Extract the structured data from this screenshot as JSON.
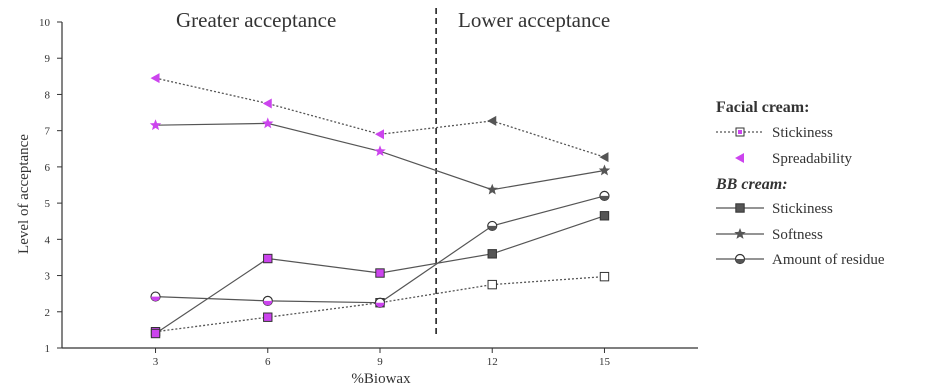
{
  "chart_data": {
    "type": "line",
    "xlabel": "%Biowax",
    "ylabel": "Level of acceptance",
    "xlim": [
      0.5,
      17.5
    ],
    "ylim": [
      1,
      10
    ],
    "x_ticks": [
      3,
      6,
      9,
      12,
      15
    ],
    "y_ticks": [
      1,
      2,
      3,
      4,
      5,
      6,
      7,
      8,
      9,
      10
    ],
    "divider_x": 10.5,
    "region_labels": {
      "left": "Greater acceptance",
      "right": "Lower acceptance"
    },
    "legend": {
      "placement": "right",
      "group_facial": "Facial cream:",
      "group_bb": "BB cream:"
    },
    "series": [
      {
        "name": "Stickiness",
        "group": "Facial cream",
        "marker": "square-open",
        "line": "dotted",
        "x": [
          3,
          6,
          9,
          12,
          15
        ],
        "y": [
          1.45,
          1.85,
          2.25,
          2.75,
          2.97
        ]
      },
      {
        "name": "Spreadability",
        "group": "Facial cream",
        "marker": "triangle-left",
        "line": "dotted",
        "x": [
          3,
          6,
          9,
          12,
          15
        ],
        "y": [
          8.45,
          7.75,
          6.9,
          7.27,
          6.27
        ]
      },
      {
        "name": "Stickiness",
        "group": "BB cream",
        "marker": "square",
        "line": "solid",
        "x": [
          3,
          6,
          9,
          12,
          15
        ],
        "y": [
          1.4,
          3.47,
          3.07,
          3.6,
          4.65
        ]
      },
      {
        "name": "Softness",
        "group": "BB cream",
        "marker": "star",
        "line": "solid",
        "x": [
          3,
          6,
          9,
          12,
          15
        ],
        "y": [
          7.15,
          7.2,
          6.43,
          5.37,
          5.9
        ]
      },
      {
        "name": "Amount of residue",
        "group": "BB cream",
        "marker": "circle-half",
        "line": "solid",
        "x": [
          3,
          6,
          9,
          12,
          15
        ],
        "y": [
          2.42,
          2.3,
          2.25,
          4.37,
          5.2
        ]
      }
    ],
    "colors": {
      "highlight": "#cc44ee",
      "line": "#555555",
      "marker": "#555555",
      "axis": "#333333"
    }
  }
}
